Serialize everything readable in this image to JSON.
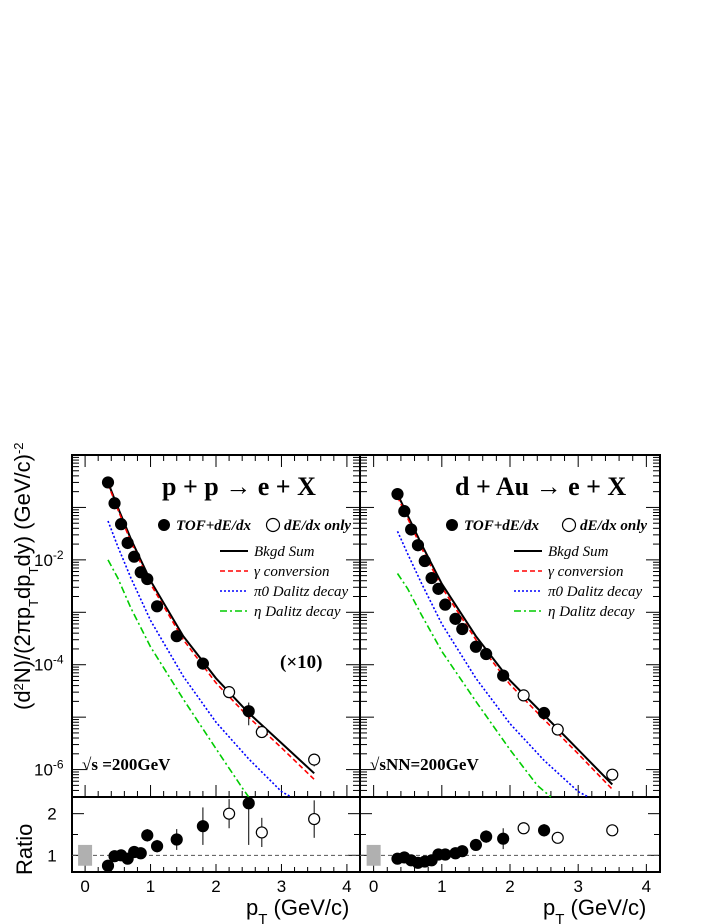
{
  "chart_data": [
    {
      "type": "scatter",
      "panel": "p+p",
      "reaction": "p + p → e + X",
      "energy_label": "√s =200GeV",
      "scale_label": "(×10)",
      "ylabel": "(d2N)/(2πpT dpT dy) (GeV/c)-2",
      "xlabel": "pT (GeV/c)",
      "y_log": true,
      "ylim": [
        3e-07,
        1.0
      ],
      "xlim": [
        -0.2,
        4.2
      ],
      "yticks": [
        1e-06,
        0.0001,
        0.01
      ],
      "xticks": [
        0,
        1,
        2,
        3,
        4
      ],
      "legend_markers": [
        "TOF+dE/dx",
        "dE/dx only"
      ],
      "legend_lines": [
        "Bkgd Sum",
        "γ conversion",
        "π0 Dalitz decay",
        "η Dalitz decay"
      ],
      "series": [
        {
          "name": "TOF+dE/dx",
          "marker": "filled",
          "x": [
            0.35,
            0.45,
            0.55,
            0.65,
            0.75,
            0.85,
            0.95,
            1.1,
            1.4,
            1.8,
            2.5
          ],
          "y": [
            0.3,
            0.12,
            0.048,
            0.021,
            0.0115,
            0.0058,
            0.0043,
            0.0013,
            0.00035,
            0.000105,
            1.3e-05
          ],
          "yerr": [
            0.02,
            0.008,
            0.003,
            0.0015,
            0.0008,
            0.0005,
            0.0004,
            0.00012,
            3e-05,
            1e-05,
            6e-06
          ]
        },
        {
          "name": "dE/dx only",
          "marker": "open",
          "x": [
            2.2,
            2.7,
            3.5
          ],
          "y": [
            3e-05,
            5.2e-06,
            1.55e-06
          ],
          "yerr": [
            3e-06,
            1e-06,
            4e-07
          ]
        },
        {
          "name": "Bkgd Sum",
          "style": "solid",
          "color": "#000000",
          "x": [
            0.35,
            0.5,
            0.7,
            1.0,
            1.5,
            2.0,
            2.5,
            3.0,
            3.5
          ],
          "y": [
            0.3,
            0.1,
            0.025,
            0.004,
            0.00035,
            5.5e-05,
            1.2e-05,
            3.2e-06,
            8.5e-07
          ]
        },
        {
          "name": "γ conversion",
          "style": "dashed",
          "color": "#ff0000",
          "x": [
            0.35,
            0.5,
            0.7,
            1.0,
            1.5,
            2.0,
            2.5,
            3.0,
            3.5
          ],
          "y": [
            0.28,
            0.092,
            0.022,
            0.0035,
            0.0003,
            4.5e-05,
            1e-05,
            2.6e-06,
            6.5e-07
          ]
        },
        {
          "name": "π0 Dalitz decay",
          "style": "dotted",
          "color": "#0000ff",
          "x": [
            0.35,
            0.5,
            0.7,
            1.0,
            1.5,
            2.0,
            2.5,
            3.0,
            3.15
          ],
          "y": [
            0.055,
            0.018,
            0.0045,
            0.0007,
            6e-05,
            8e-06,
            1.6e-06,
            3.8e-07,
            3e-07
          ]
        },
        {
          "name": "η Dalitz decay",
          "style": "dashdot",
          "color": "#00cc00",
          "x": [
            0.35,
            0.5,
            0.7,
            1.0,
            1.5,
            2.0,
            2.4,
            2.5
          ],
          "y": [
            0.01,
            0.0045,
            0.0012,
            0.00022,
            2.2e-05,
            2.5e-06,
            4.5e-07,
            3e-07
          ]
        }
      ],
      "ratio": {
        "ylabel": "Ratio",
        "ylim": [
          0.6,
          2.4
        ],
        "yticks": [
          1,
          2
        ],
        "reference": 1,
        "syst_box": {
          "x": 0,
          "y_low": 0.75,
          "y_high": 1.25
        },
        "points": [
          {
            "x": 0.35,
            "y": 0.75,
            "yerr": 0.05,
            "marker": "filled"
          },
          {
            "x": 0.45,
            "y": 0.98,
            "yerr": 0.05,
            "marker": "filled"
          },
          {
            "x": 0.55,
            "y": 1.0,
            "yerr": 0.05,
            "marker": "filled"
          },
          {
            "x": 0.65,
            "y": 0.92,
            "yerr": 0.05,
            "marker": "filled"
          },
          {
            "x": 0.75,
            "y": 1.08,
            "yerr": 0.07,
            "marker": "filled"
          },
          {
            "x": 0.85,
            "y": 1.05,
            "yerr": 0.08,
            "marker": "filled"
          },
          {
            "x": 0.95,
            "y": 1.48,
            "yerr": 0.15,
            "marker": "filled"
          },
          {
            "x": 1.1,
            "y": 1.22,
            "yerr": 0.15,
            "marker": "filled"
          },
          {
            "x": 1.4,
            "y": 1.38,
            "yerr": 0.25,
            "marker": "filled"
          },
          {
            "x": 1.8,
            "y": 1.7,
            "yerr": 0.45,
            "marker": "filled"
          },
          {
            "x": 2.2,
            "y": 2.0,
            "yerr": 0.35,
            "marker": "open"
          },
          {
            "x": 2.5,
            "y": 2.25,
            "yerr": 1.0,
            "marker": "filled"
          },
          {
            "x": 2.7,
            "y": 1.55,
            "yerr": 0.35,
            "marker": "open"
          },
          {
            "x": 3.5,
            "y": 1.87,
            "yerr": 0.45,
            "marker": "open"
          }
        ]
      }
    },
    {
      "type": "scatter",
      "panel": "d+Au",
      "reaction": "d + Au → e + X",
      "energy_label": "√sNN=200GeV",
      "xlabel": "pT (GeV/c)",
      "y_log": true,
      "ylim": [
        3e-07,
        1.0
      ],
      "xlim": [
        -0.2,
        4.2
      ],
      "xticks": [
        0,
        1,
        2,
        3,
        4
      ],
      "legend_markers": [
        "TOF+dE/dx",
        "dE/dx only"
      ],
      "legend_lines": [
        "Bkgd Sum",
        "γ conversion",
        "π0 Dalitz decay",
        "η Dalitz decay"
      ],
      "series": [
        {
          "name": "TOF+dE/dx",
          "marker": "filled",
          "x": [
            0.35,
            0.45,
            0.55,
            0.65,
            0.75,
            0.85,
            0.95,
            1.05,
            1.2,
            1.3,
            1.5,
            1.65,
            1.9,
            2.5
          ],
          "y": [
            0.18,
            0.085,
            0.038,
            0.019,
            0.0095,
            0.0045,
            0.0028,
            0.0014,
            0.00075,
            0.00048,
            0.00022,
            0.00016,
            6.2e-05,
            1.2e-05
          ],
          "yerr": [
            0.01,
            0.005,
            0.002,
            0.001,
            0.0006,
            0.0003,
            0.0002,
            0.0001,
            6e-05,
            4e-05,
            2e-05,
            1.5e-05,
            6e-06,
            2e-06
          ]
        },
        {
          "name": "dE/dx only",
          "marker": "open",
          "x": [
            2.2,
            2.7,
            3.5
          ],
          "y": [
            2.6e-05,
            5.8e-06,
            8e-07
          ],
          "yerr": [
            2e-06,
            5e-07,
            8e-08
          ]
        },
        {
          "name": "Bkgd Sum",
          "style": "solid",
          "color": "#000000",
          "x": [
            0.35,
            0.5,
            0.7,
            1.0,
            1.5,
            2.0,
            2.5,
            3.0,
            3.5
          ],
          "y": [
            0.18,
            0.07,
            0.02,
            0.0035,
            0.00035,
            5e-05,
            1.1e-05,
            2.4e-06,
            5.2e-07
          ]
        },
        {
          "name": "γ conversion",
          "style": "dashed",
          "color": "#ff0000",
          "x": [
            0.35,
            0.5,
            0.7,
            1.0,
            1.5,
            2.0,
            2.5,
            3.0,
            3.5
          ],
          "y": [
            0.16,
            0.062,
            0.017,
            0.003,
            0.0003,
            4.2e-05,
            9e-06,
            2e-06,
            4.2e-07
          ]
        },
        {
          "name": "π0 Dalitz decay",
          "style": "dotted",
          "color": "#0000ff",
          "x": [
            0.35,
            0.5,
            0.7,
            1.0,
            1.5,
            2.0,
            2.5,
            3.0,
            3.15
          ],
          "y": [
            0.035,
            0.013,
            0.0036,
            0.0006,
            5.5e-05,
            7.5e-06,
            1.5e-06,
            3.8e-07,
            3e-07
          ]
        },
        {
          "name": "η Dalitz decay",
          "style": "dashdot",
          "color": "#00cc00",
          "x": [
            0.35,
            0.5,
            0.7,
            1.0,
            1.5,
            2.0,
            2.4,
            2.6
          ],
          "y": [
            0.0055,
            0.0028,
            0.0009,
            0.00018,
            2e-05,
            2.4e-06,
            5e-07,
            3e-07
          ]
        }
      ],
      "ratio": {
        "ylim": [
          0.6,
          2.4
        ],
        "reference": 1,
        "syst_box": {
          "x": 0,
          "y_low": 0.75,
          "y_high": 1.25
        },
        "points": [
          {
            "x": 0.35,
            "y": 0.92,
            "yerr": 0.05,
            "marker": "filled"
          },
          {
            "x": 0.45,
            "y": 0.95,
            "yerr": 0.05,
            "marker": "filled"
          },
          {
            "x": 0.55,
            "y": 0.88,
            "yerr": 0.05,
            "marker": "filled"
          },
          {
            "x": 0.65,
            "y": 0.82,
            "yerr": 0.05,
            "marker": "filled"
          },
          {
            "x": 0.75,
            "y": 0.85,
            "yerr": 0.05,
            "marker": "filled"
          },
          {
            "x": 0.85,
            "y": 0.88,
            "yerr": 0.05,
            "marker": "filled"
          },
          {
            "x": 0.95,
            "y": 1.02,
            "yerr": 0.06,
            "marker": "filled"
          },
          {
            "x": 1.05,
            "y": 1.02,
            "yerr": 0.06,
            "marker": "filled"
          },
          {
            "x": 1.2,
            "y": 1.05,
            "yerr": 0.06,
            "marker": "filled"
          },
          {
            "x": 1.3,
            "y": 1.1,
            "yerr": 0.07,
            "marker": "filled"
          },
          {
            "x": 1.5,
            "y": 1.25,
            "yerr": 0.08,
            "marker": "filled"
          },
          {
            "x": 1.65,
            "y": 1.45,
            "yerr": 0.15,
            "marker": "filled"
          },
          {
            "x": 1.9,
            "y": 1.4,
            "yerr": 0.25,
            "marker": "filled"
          },
          {
            "x": 2.2,
            "y": 1.65,
            "yerr": 0.08,
            "marker": "open"
          },
          {
            "x": 2.5,
            "y": 1.6,
            "yerr": 0.15,
            "marker": "filled"
          },
          {
            "x": 2.7,
            "y": 1.42,
            "yerr": 0.08,
            "marker": "open"
          },
          {
            "x": 3.5,
            "y": 1.6,
            "yerr": 0.1,
            "marker": "open"
          }
        ]
      }
    }
  ],
  "labels": {
    "ylabel_main": "(d2N)/(2πpT dpT dy) (GeV/c)-2",
    "ylabel_ratio": "Ratio",
    "xlabel": "pT (GeV/c)"
  }
}
